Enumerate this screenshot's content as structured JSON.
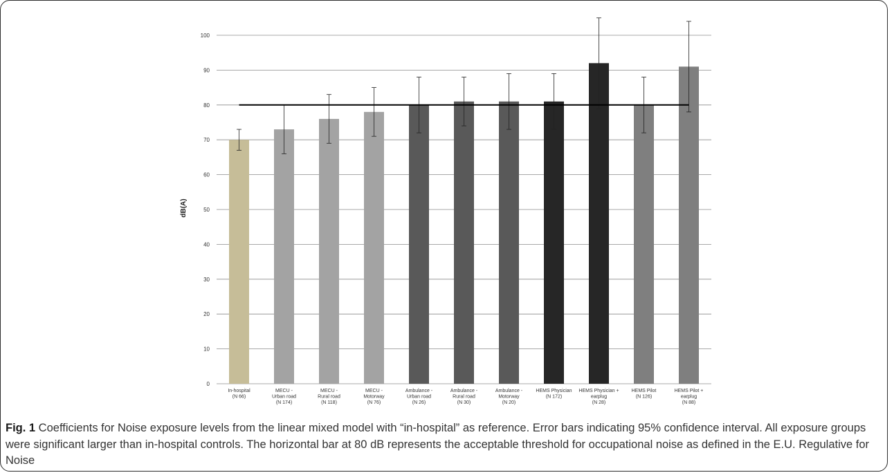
{
  "figure": {
    "caption_label": "Fig. 1",
    "caption_text": " Coefficients for Noise exposure levels from the linear mixed model with “in-hospital” as reference. Error bars indicating 95% confidence interval. All exposure groups were significant larger than in-hospital controls. The horizontal bar at 80 dB represents the acceptable threshold for occupational noise as defined in the E.U. Regulative for Noise"
  },
  "chart_data": {
    "type": "bar",
    "title": "",
    "xlabel": "",
    "ylabel": "dB(A)",
    "ylim": [
      0,
      100
    ],
    "yticks": [
      0,
      10,
      20,
      30,
      40,
      50,
      60,
      70,
      80,
      90,
      100
    ],
    "grid": "horizontal",
    "categories": [
      [
        "In-hospital",
        "(N 66)"
      ],
      [
        "MECU -",
        "Urban road",
        "(N 174)"
      ],
      [
        "MECU -",
        "Rural road",
        "(N 118)"
      ],
      [
        "MECU -",
        "Motorway",
        "(N 76)"
      ],
      [
        "Ambulance -",
        "Urban road",
        "(N 26)"
      ],
      [
        "Ambulance -",
        "Rural road",
        "(N 30)"
      ],
      [
        "Ambulance -",
        "Motorway",
        "(N 20)"
      ],
      [
        "HEMS Physician",
        "(N 172)"
      ],
      [
        "HEMS Physician +",
        "earplug",
        "(N 28)"
      ],
      [
        "HEMS Pilot",
        "(N 126)"
      ],
      [
        "HEMS Pilot +",
        "earplug",
        "(N 88)"
      ]
    ],
    "values": [
      70,
      73,
      76,
      78,
      80,
      81,
      81,
      81,
      92,
      80,
      91
    ],
    "error_low": [
      67,
      66,
      69,
      71,
      72,
      74,
      73,
      73,
      79,
      72,
      78
    ],
    "error_high": [
      73,
      80,
      83,
      85,
      88,
      88,
      89,
      89,
      105,
      88,
      104
    ],
    "bar_colors": [
      "#c6bd98",
      "#a3a3a3",
      "#a3a3a3",
      "#a3a3a3",
      "#595959",
      "#595959",
      "#595959",
      "#262626",
      "#262626",
      "#7f7f7f",
      "#7f7f7f"
    ],
    "threshold": 80,
    "threshold_color": "#000000",
    "grid_color": "#8c8c8c"
  }
}
